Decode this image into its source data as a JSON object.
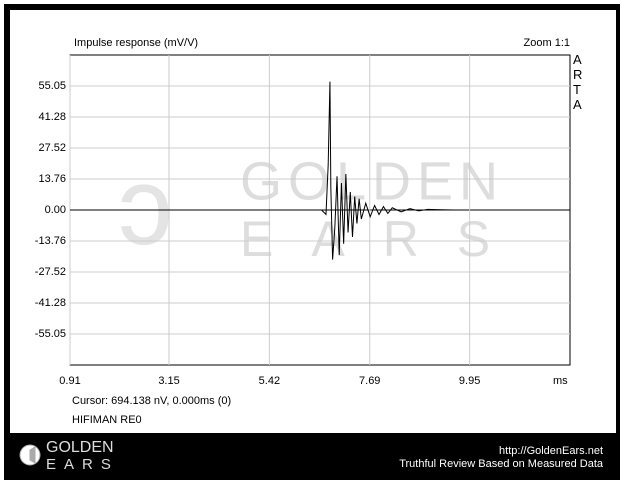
{
  "chart_data": {
    "type": "line",
    "title": "Impulse response (mV/V)",
    "zoom_label": "Zoom 1:1",
    "brand": "ARTA",
    "xlabel": "ms",
    "cursor": "Cursor: 694.138 nV, 0.000ms (0)",
    "device": "HIFIMAN RE0",
    "watermark": [
      "GOLDEN",
      "EARS"
    ],
    "footer": {
      "logo": [
        "GOLDEN",
        "EARS"
      ],
      "url": "http://GoldenEars.net",
      "tagline": "Truthful Review Based on Measured Data"
    },
    "x": [
      0.91,
      6.6,
      6.7,
      6.75,
      6.79,
      6.81,
      6.85,
      6.9,
      6.95,
      7.0,
      7.05,
      7.1,
      7.15,
      7.2,
      7.25,
      7.3,
      7.35,
      7.4,
      7.45,
      7.5,
      7.6,
      7.7,
      7.8,
      7.9,
      8.0,
      8.1,
      8.2,
      8.4,
      8.6,
      8.8,
      9.0,
      9.3,
      9.6
    ],
    "series": [
      {
        "color": "#000000",
        "values": [
          0,
          0,
          -2,
          20,
          57,
          10,
          -22,
          -8,
          15,
          -20,
          12,
          -15,
          16,
          -10,
          8,
          -12,
          6,
          -6,
          5,
          -4,
          3,
          -3,
          2,
          -2,
          1.5,
          -1.5,
          1,
          -0.8,
          0.6,
          -0.4,
          0.3,
          0.1,
          0
        ]
      }
    ],
    "xlim": [
      0.91,
      12.22
    ],
    "xticks": [
      0.91,
      3.15,
      5.42,
      7.69,
      9.95
    ],
    "ylim": [
      -68.81,
      68.81
    ],
    "yticks": [
      55.05,
      41.28,
      27.52,
      13.76,
      {
        "value": 0,
        "label": "0.00"
      },
      -13.76,
      -27.52,
      -41.28,
      -55.05
    ],
    "grid": true
  }
}
